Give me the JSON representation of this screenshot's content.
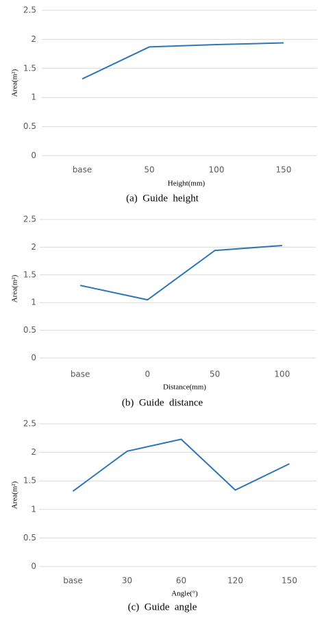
{
  "chart_data": [
    {
      "type": "line",
      "categories": [
        "base",
        "50",
        "100",
        "150"
      ],
      "values": [
        1.32,
        1.87,
        1.91,
        1.94
      ],
      "color": "#2e75b6",
      "ylim": [
        0,
        2.5
      ],
      "yticks": [
        0,
        0.5,
        1,
        1.5,
        2,
        2.5
      ],
      "grid": true,
      "xlabel": "Height(mm)",
      "ylabel": "Area(m²)",
      "caption": "(a)  Guide  height"
    },
    {
      "type": "line",
      "categories": [
        "base",
        "0",
        "50",
        "100"
      ],
      "values": [
        1.31,
        1.05,
        1.94,
        2.03
      ],
      "color": "#2e75b6",
      "ylim": [
        0,
        2.5
      ],
      "yticks": [
        0,
        0.5,
        1,
        1.5,
        2,
        2.5
      ],
      "grid": true,
      "xlabel": "Distance(mm)",
      "ylabel": "Area(m²)",
      "caption": "(b)  Guide  distance"
    },
    {
      "type": "line",
      "categories": [
        "base",
        "30",
        "60",
        "120",
        "150"
      ],
      "values": [
        1.32,
        2.02,
        2.23,
        1.34,
        1.8
      ],
      "color": "#2e75b6",
      "ylim": [
        0,
        2.5
      ],
      "yticks": [
        0,
        0.5,
        1,
        1.5,
        2,
        2.5
      ],
      "grid": true,
      "xlabel": "Angle(°)",
      "ylabel": "Area(m²)",
      "caption": "(c)  Guide  angle"
    }
  ]
}
